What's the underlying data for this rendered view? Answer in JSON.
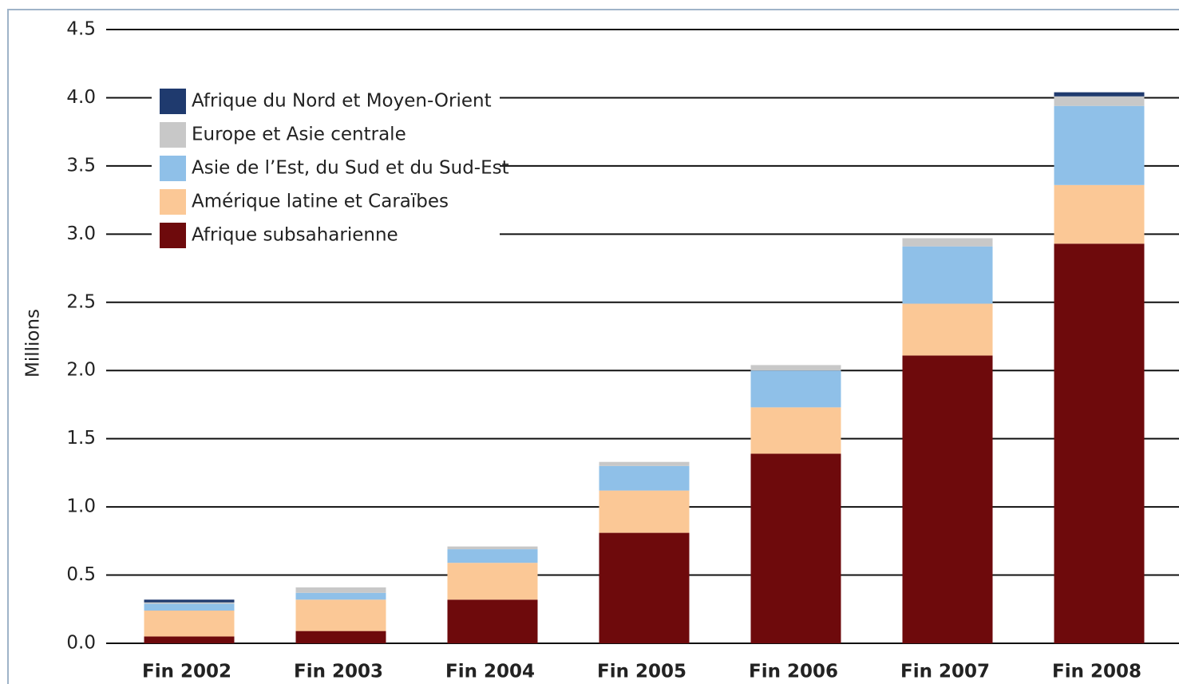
{
  "chart_data": {
    "type": "stacked_bar",
    "y_label": "Millions",
    "categories": [
      "Fin 2002",
      "Fin 2003",
      "Fin 2004",
      "Fin 2005",
      "Fin 2006",
      "Fin 2007",
      "Fin 2008"
    ],
    "series": [
      {
        "name": "Afrique du Nord et Moyen-Orient",
        "color": "#1f3a6e",
        "values": [
          0.02,
          0,
          0,
          0,
          0,
          0,
          0.03
        ]
      },
      {
        "name": "Europe et Asie centrale",
        "color": "#c8c8c8",
        "values": [
          0.01,
          0.04,
          0.02,
          0.03,
          0.04,
          0.06,
          0.07
        ]
      },
      {
        "name": "Asie de l’Est, du Sud et du Sud-Est",
        "color": "#8fc0e8",
        "values": [
          0.05,
          0.05,
          0.1,
          0.18,
          0.27,
          0.42,
          0.58
        ]
      },
      {
        "name": "Amérique latine et Caraïbes",
        "color": "#fbc896",
        "values": [
          0.19,
          0.23,
          0.27,
          0.31,
          0.34,
          0.38,
          0.43
        ]
      },
      {
        "name": "Afrique subsaharienne",
        "color": "#6e0a0c",
        "values": [
          0.05,
          0.09,
          0.32,
          0.81,
          1.39,
          2.11,
          2.93
        ]
      }
    ],
    "ylim": [
      0,
      4.5
    ],
    "yticks": [
      {
        "value": 0,
        "label": "0.0"
      },
      0.5,
      {
        "value": 1,
        "label": "1.0"
      },
      1.5,
      {
        "value": 2,
        "label": "2.0"
      },
      2.5,
      {
        "value": 3,
        "label": "3.0"
      },
      3.5,
      {
        "value": 4,
        "label": "4.0"
      },
      4.5
    ],
    "grid": true
  }
}
